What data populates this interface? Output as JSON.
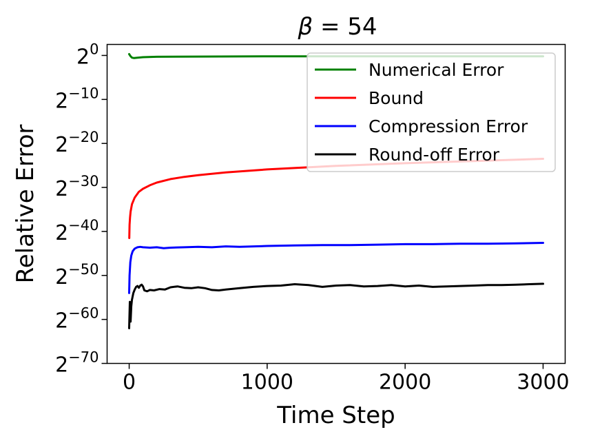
{
  "chart_data": {
    "type": "line",
    "title_symbol": "β",
    "title_rest": " = 54",
    "xlabel": "Time Step",
    "ylabel": "Relative Error",
    "xlim": [
      -160,
      3160
    ],
    "ylim": [
      -70,
      2.5
    ],
    "y_scale": "log2",
    "x_ticks": [
      0,
      1000,
      2000,
      3000
    ],
    "x_tick_labels": [
      "0",
      "1000",
      "2000",
      "3000"
    ],
    "y_ticks": [
      0,
      -10,
      -20,
      -30,
      -40,
      -50,
      -60,
      -70
    ],
    "y_tick_base": "2",
    "y_tick_exponents": [
      "0",
      "−10",
      "−20",
      "−30",
      "−40",
      "−50",
      "−60",
      "−70"
    ],
    "grid": false,
    "legend_position": "upper-right",
    "series": [
      {
        "name": "Numerical Error",
        "color": "#008000",
        "points": [
          [
            0,
            0.3
          ],
          [
            10,
            -0.2
          ],
          [
            20,
            -0.5
          ],
          [
            35,
            -0.6
          ],
          [
            60,
            -0.5
          ],
          [
            100,
            -0.4
          ],
          [
            200,
            -0.3
          ],
          [
            500,
            -0.25
          ],
          [
            1000,
            -0.2
          ],
          [
            2000,
            -0.2
          ],
          [
            3000,
            -0.2
          ]
        ]
      },
      {
        "name": "Bound",
        "color": "#ff0000",
        "points": [
          [
            1,
            -41.5
          ],
          [
            3,
            -38.5
          ],
          [
            6,
            -36.8
          ],
          [
            10,
            -35.5
          ],
          [
            20,
            -33.8
          ],
          [
            40,
            -32.3
          ],
          [
            70,
            -31
          ],
          [
            100,
            -30.3
          ],
          [
            150,
            -29.5
          ],
          [
            200,
            -28.9
          ],
          [
            300,
            -28.1
          ],
          [
            400,
            -27.6
          ],
          [
            500,
            -27.2
          ],
          [
            700,
            -26.6
          ],
          [
            1000,
            -25.9
          ],
          [
            1500,
            -25.1
          ],
          [
            2000,
            -24.5
          ],
          [
            2500,
            -24
          ],
          [
            3000,
            -23.5
          ]
        ]
      },
      {
        "name": "Compression Error",
        "color": "#0000ff",
        "points": [
          [
            0,
            -54
          ],
          [
            3,
            -50
          ],
          [
            8,
            -47
          ],
          [
            15,
            -45.5
          ],
          [
            25,
            -44.5
          ],
          [
            40,
            -43.9
          ],
          [
            60,
            -43.6
          ],
          [
            80,
            -43.5
          ],
          [
            100,
            -43.6
          ],
          [
            150,
            -43.7
          ],
          [
            200,
            -43.6
          ],
          [
            250,
            -43.8
          ],
          [
            300,
            -43.7
          ],
          [
            400,
            -43.6
          ],
          [
            500,
            -43.5
          ],
          [
            600,
            -43.6
          ],
          [
            700,
            -43.4
          ],
          [
            800,
            -43.5
          ],
          [
            1000,
            -43.3
          ],
          [
            1200,
            -43.2
          ],
          [
            1400,
            -43.1
          ],
          [
            1600,
            -43.1
          ],
          [
            1800,
            -43
          ],
          [
            2000,
            -42.9
          ],
          [
            2200,
            -42.9
          ],
          [
            2400,
            -42.8
          ],
          [
            2600,
            -42.8
          ],
          [
            2800,
            -42.7
          ],
          [
            3000,
            -42.6
          ]
        ]
      },
      {
        "name": "Round-off Error",
        "color": "#000000",
        "points": [
          [
            0,
            -62
          ],
          [
            5,
            -56
          ],
          [
            10,
            -60.5
          ],
          [
            15,
            -57
          ],
          [
            20,
            -55.5
          ],
          [
            30,
            -54
          ],
          [
            40,
            -53.2
          ],
          [
            50,
            -52.6
          ],
          [
            60,
            -52.4
          ],
          [
            70,
            -52.8
          ],
          [
            80,
            -52.3
          ],
          [
            90,
            -52.1
          ],
          [
            100,
            -52.5
          ],
          [
            110,
            -53.4
          ],
          [
            130,
            -53.6
          ],
          [
            150,
            -53.3
          ],
          [
            180,
            -53.4
          ],
          [
            220,
            -53.1
          ],
          [
            260,
            -53.2
          ],
          [
            300,
            -52.7
          ],
          [
            350,
            -52.5
          ],
          [
            400,
            -52.8
          ],
          [
            450,
            -52.9
          ],
          [
            500,
            -52.7
          ],
          [
            550,
            -52.9
          ],
          [
            600,
            -53.3
          ],
          [
            650,
            -53.4
          ],
          [
            700,
            -53.2
          ],
          [
            800,
            -52.9
          ],
          [
            900,
            -52.6
          ],
          [
            1000,
            -52.4
          ],
          [
            1100,
            -52.3
          ],
          [
            1200,
            -52.0
          ],
          [
            1300,
            -52.2
          ],
          [
            1400,
            -52.6
          ],
          [
            1500,
            -52.3
          ],
          [
            1600,
            -52.2
          ],
          [
            1700,
            -52.5
          ],
          [
            1800,
            -52.4
          ],
          [
            1900,
            -52.2
          ],
          [
            2000,
            -52.5
          ],
          [
            2100,
            -52.3
          ],
          [
            2200,
            -52.6
          ],
          [
            2300,
            -52.5
          ],
          [
            2400,
            -52.4
          ],
          [
            2500,
            -52.3
          ],
          [
            2600,
            -52.2
          ],
          [
            2700,
            -52.2
          ],
          [
            2800,
            -52.1
          ],
          [
            2900,
            -52.0
          ],
          [
            3000,
            -51.9
          ]
        ]
      }
    ]
  }
}
